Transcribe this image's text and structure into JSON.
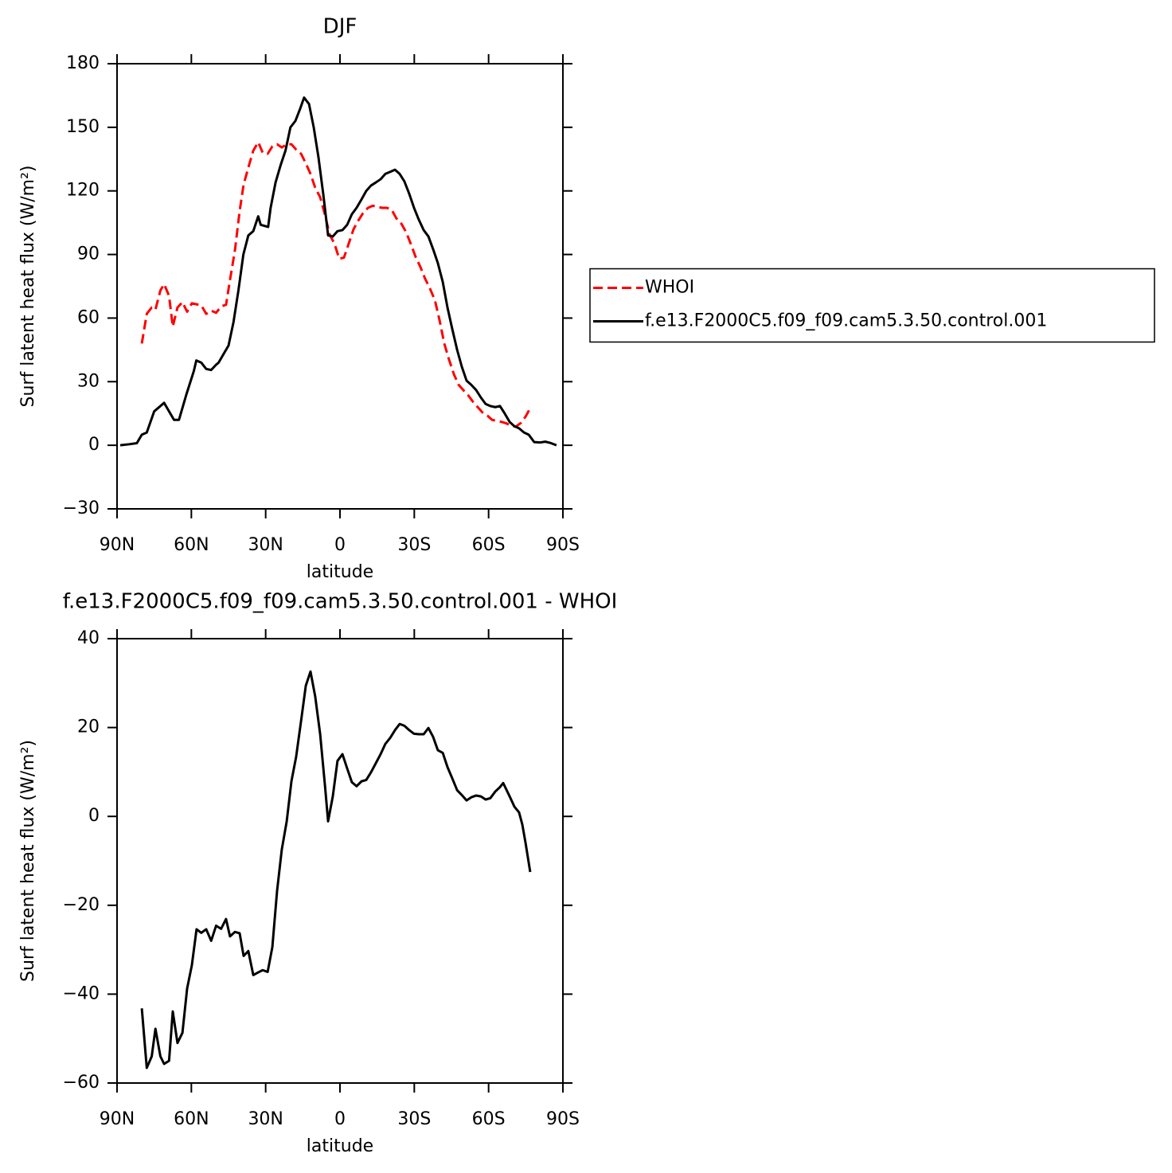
{
  "chart_data": [
    {
      "type": "line",
      "title": "DJF",
      "xlabel": "latitude",
      "ylabel": "Surf latent heat flux (W/m²)",
      "xlim": [
        90,
        -90
      ],
      "xticks": [
        {
          "value": 90,
          "label": "90N"
        },
        {
          "value": 60,
          "label": "60N"
        },
        {
          "value": 30,
          "label": "30N"
        },
        0,
        {
          "value": -30,
          "label": "30S"
        },
        {
          "value": -60,
          "label": "60S"
        },
        {
          "value": -90,
          "label": "90S"
        }
      ],
      "ylim": [
        -30,
        180
      ],
      "yticks": [
        -30,
        0,
        30,
        60,
        90,
        120,
        150,
        180
      ],
      "legend": "right",
      "series": [
        {
          "name": "WHOI",
          "color": "#ff0000",
          "dash": true,
          "x": [
            80,
            78,
            76,
            74.5,
            72.5,
            71,
            69,
            67.5,
            65.6,
            63.6,
            61.7,
            59.8,
            57.9,
            56,
            54,
            52,
            50,
            48,
            46,
            44.4,
            42.4,
            40.5,
            38.9,
            37,
            35,
            33,
            31.2,
            29.2,
            27.3,
            25.4,
            23.5,
            21.5,
            19.6,
            17.7,
            15.7,
            13.8,
            11.9,
            10,
            8,
            6,
            4.2,
            2.2,
            0.3,
            -1.6,
            -3.5,
            -5.5,
            -7.4,
            -9.3,
            -11.3,
            -13.2,
            -15.1,
            -17,
            -19,
            -20.9,
            -22.8,
            -24.8,
            -26.7,
            -28.6,
            -30.5,
            -32.5,
            -34.4,
            -36.3,
            -38.3,
            -40.2,
            -42.1,
            -44,
            -46,
            -47.9,
            -49.8,
            -51.8,
            -53.7,
            -55.6,
            -57.5,
            -59.5,
            -61.4,
            -63.3,
            -65.3,
            -67.2,
            -69.1,
            -71,
            -73,
            -74.9,
            -76.8
          ],
          "values": [
            48,
            62,
            65,
            64,
            73,
            76,
            70.5,
            56,
            65,
            67.5,
            63,
            67,
            66.5,
            66,
            62,
            63.5,
            62.5,
            65.5,
            66.3,
            78,
            92,
            110.5,
            123,
            131,
            139,
            143,
            138,
            137.5,
            141,
            142,
            140.5,
            142,
            142,
            139.5,
            137.5,
            133,
            128,
            121.5,
            117,
            108.5,
            99.5,
            95,
            88,
            88.5,
            95,
            102,
            106,
            109.5,
            112,
            113,
            112.5,
            112,
            112,
            111,
            107,
            104.5,
            100.5,
            95,
            89,
            84,
            78.5,
            74,
            68.5,
            59,
            48,
            40.5,
            33.5,
            28.5,
            26,
            23.5,
            20.5,
            18,
            15.5,
            14,
            12,
            11.5,
            11,
            10.3,
            9.2,
            8.8,
            10.5,
            13.5,
            17.5
          ]
        },
        {
          "name": "f.e13.F2000C5.f09_f09.cam5.3.50.control.001",
          "color": "#000000",
          "dash": false,
          "x": [
            88.7,
            85,
            82,
            80,
            78,
            75,
            72,
            71,
            67,
            65,
            62,
            59,
            58,
            56,
            54,
            52,
            50,
            49,
            47,
            45,
            43,
            41,
            39,
            37,
            35,
            33,
            32,
            29,
            28,
            26,
            24,
            22,
            20,
            18,
            16,
            14.5,
            12.5,
            10.6,
            8.7,
            6.7,
            4.8,
            2.9,
            1,
            -1,
            -2.9,
            -4.8,
            -6.7,
            -8.7,
            -10.6,
            -12.5,
            -14.5,
            -16.4,
            -18.3,
            -20.3,
            -22.2,
            -24.1,
            -26,
            -28,
            -29.9,
            -31.8,
            -33.8,
            -35.7,
            -37.6,
            -39.5,
            -41.5,
            -43.4,
            -45.3,
            -47.3,
            -49.2,
            -51.1,
            -53,
            -55,
            -56.9,
            -58.8,
            -60.7,
            -62.7,
            -64.6,
            -66.5,
            -68.5,
            -70.4,
            -72.3,
            -74.3,
            -76.2,
            -78.4,
            -80.7,
            -82.9,
            -85.2,
            -87.4
          ],
          "values": [
            0,
            0.5,
            1,
            5,
            6,
            16,
            19,
            20,
            12,
            12,
            24,
            35,
            40,
            39,
            36,
            35.5,
            38,
            39,
            43,
            47,
            58,
            73,
            90,
            99,
            101,
            108,
            104,
            103,
            112,
            124,
            132,
            139,
            150,
            153,
            159,
            164,
            161,
            150,
            136,
            118,
            99,
            98.5,
            101,
            101.5,
            104,
            109,
            112,
            116,
            120,
            122.5,
            124,
            125.5,
            128,
            129,
            130,
            128,
            124.5,
            118.5,
            112,
            106.5,
            101.5,
            98.5,
            92.5,
            86,
            77,
            65,
            55,
            45,
            37,
            30.5,
            28.5,
            26,
            22.5,
            19.5,
            18.5,
            18,
            18.5,
            15,
            11,
            9,
            8,
            6,
            5,
            1.5,
            1.3,
            1.7,
            1,
            0
          ]
        }
      ]
    },
    {
      "type": "line",
      "title": "f.e13.F2000C5.f09_f09.cam5.3.50.control.001 - WHOI",
      "xlabel": "latitude",
      "ylabel": "Surf latent heat flux (W/m²)",
      "xlim": [
        90,
        -90
      ],
      "xticks": [
        {
          "value": 90,
          "label": "90N"
        },
        {
          "value": 60,
          "label": "60N"
        },
        {
          "value": 30,
          "label": "30N"
        },
        0,
        {
          "value": -30,
          "label": "30S"
        },
        {
          "value": -60,
          "label": "60S"
        },
        {
          "value": -90,
          "label": "90S"
        }
      ],
      "ylim": [
        -60,
        40
      ],
      "yticks": [
        -60,
        -40,
        -20,
        0,
        20,
        40
      ],
      "color": "#000000",
      "x": [
        80,
        78,
        76,
        74.5,
        72.5,
        71,
        69,
        67.5,
        65.6,
        63.6,
        61.7,
        59.8,
        57.9,
        56,
        54,
        52,
        50,
        48,
        46,
        44.4,
        42.4,
        40.5,
        38.9,
        37,
        35,
        33,
        31.2,
        29.2,
        27.3,
        25.4,
        23.5,
        21.5,
        19.6,
        17.7,
        15.7,
        13.8,
        11.9,
        10,
        8,
        6,
        4.8,
        2.9,
        1,
        -1,
        -2.9,
        -4.8,
        -6.7,
        -8.7,
        -10.6,
        -12.5,
        -14.5,
        -16.4,
        -18.3,
        -20.3,
        -22.2,
        -24.1,
        -26,
        -28,
        -29.9,
        -31.8,
        -33.8,
        -35.7,
        -37.6,
        -39.5,
        -41.5,
        -43.4,
        -45.3,
        -47.3,
        -49.2,
        -51.1,
        -53,
        -55,
        -56.9,
        -58.8,
        -60.7,
        -62.7,
        -64.6,
        -65.9,
        -68.5,
        -70.4,
        -72.3,
        -73.6,
        -74.9,
        -76.8
      ],
      "values": [
        -43.2,
        -56.6,
        -54,
        -47.8,
        -54,
        -55.7,
        -55,
        -43.9,
        -51,
        -48.7,
        -38.7,
        -33.5,
        -25.4,
        -26.2,
        -25.4,
        -28,
        -24.6,
        -25.3,
        -23.1,
        -27,
        -26,
        -26.3,
        -31.4,
        -30.3,
        -35.7,
        -35.1,
        -34.6,
        -35,
        -29.4,
        -16.8,
        -7.5,
        -1.1,
        7.9,
        13.4,
        21.5,
        29.4,
        32.6,
        27,
        18.5,
        6.6,
        -1.1,
        4.5,
        12.5,
        14,
        10.8,
        7.7,
        6.8,
        7.9,
        8.2,
        9.9,
        12,
        14,
        16.3,
        17.7,
        19.4,
        20.8,
        20.4,
        19.4,
        18.6,
        18.5,
        18.5,
        19.9,
        17.9,
        14.9,
        14.3,
        11.1,
        8.6,
        5.9,
        4.8,
        3.6,
        4.3,
        4.7,
        4.5,
        3.8,
        4.1,
        5.6,
        6.6,
        7.5,
        4.5,
        2.2,
        0.9,
        -1.8,
        -5.9,
        -12.5
      ]
    }
  ]
}
